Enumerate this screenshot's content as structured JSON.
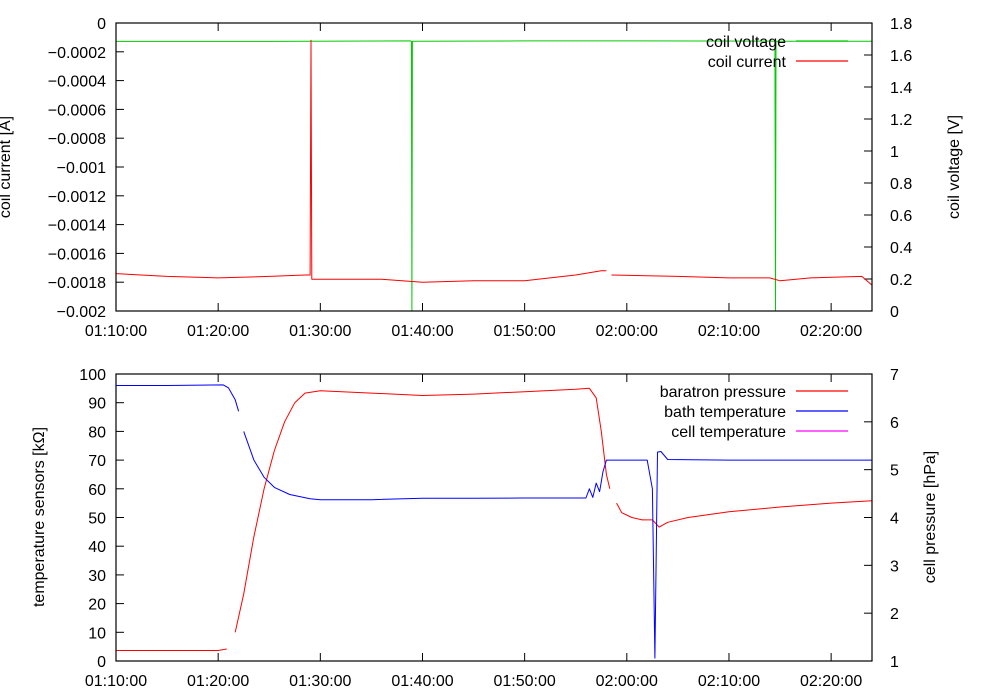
{
  "chart_data": [
    {
      "type": "line",
      "y1label": "coil current [A]",
      "y2label": "coil voltage [V]",
      "xlim": [
        "01:10:00",
        "02:24:00"
      ],
      "xticks": [
        "01:10:00",
        "01:20:00",
        "01:30:00",
        "01:40:00",
        "01:50:00",
        "02:00:00",
        "02:10:00",
        "02:20:00"
      ],
      "y1lim": [
        -0.002,
        0
      ],
      "y1ticks": [
        "0",
        "−0.0002",
        "−0.0004",
        "−0.0006",
        "−0.0008",
        "−0.001",
        "−0.0012",
        "−0.0014",
        "−0.0016",
        "−0.0018",
        "−0.002"
      ],
      "y2lim": [
        0,
        1.8
      ],
      "y2ticks": [
        "1.8",
        "1.6",
        "1.4",
        "1.2",
        "1",
        "0.8",
        "0.6",
        "0.4",
        "0.2",
        "0"
      ],
      "grid": false,
      "legend_position": "top-right",
      "series": [
        {
          "name": "coil voltage",
          "axis": "y2",
          "color": "#00cc00",
          "points": [
            [
              "01:10:00",
              1.685
            ],
            [
              "01:25:00",
              1.685
            ],
            [
              "01:38:50",
              1.688
            ],
            [
              "01:38:55",
              1.685
            ],
            [
              "01:38:58",
              0.0
            ],
            [
              "01:39:01",
              1.685
            ],
            [
              "01:39:04",
              1.686
            ],
            [
              "01:50:00",
              1.688
            ],
            [
              "02:00:00",
              1.688
            ],
            [
              "02:14:25",
              1.687
            ],
            [
              "02:14:30",
              1.68
            ],
            [
              "02:14:33",
              0.0
            ],
            [
              "02:14:36",
              1.684
            ],
            [
              "02:14:40",
              1.686
            ],
            [
              "02:24:00",
              1.686
            ]
          ]
        },
        {
          "name": "coil current",
          "axis": "y1",
          "color": "#ff0000",
          "points": [
            [
              "01:10:00",
              -0.00174
            ],
            [
              "01:15:00",
              -0.00176
            ],
            [
              "01:20:00",
              -0.00177
            ],
            [
              "01:25:00",
              -0.00176
            ],
            [
              "01:28:30",
              -0.00175
            ],
            [
              "01:29:00",
              -0.00175
            ],
            [
              "01:29:05",
              -0.00012
            ],
            [
              "01:29:10",
              -0.00178
            ],
            [
              "01:32:00",
              -0.00178
            ],
            [
              "01:36:00",
              -0.00178
            ],
            [
              "01:40:00",
              -0.0018
            ],
            [
              "01:45:00",
              -0.00179
            ],
            [
              "01:50:00",
              -0.00179
            ],
            [
              "01:55:00",
              -0.00175
            ],
            [
              "01:57:30",
              -0.00172
            ],
            [
              "01:58:00",
              -0.00172
            ],
            null,
            [
              "01:58:30",
              -0.00175
            ],
            [
              "02:05:00",
              -0.00176
            ],
            [
              "02:10:00",
              -0.00177
            ],
            [
              "02:14:00",
              -0.00177
            ],
            [
              "02:15:00",
              -0.00179
            ],
            [
              "02:18:00",
              -0.00177
            ],
            [
              "02:23:00",
              -0.00176
            ],
            [
              "02:24:00",
              -0.00182
            ]
          ]
        }
      ]
    },
    {
      "type": "line",
      "y1label": "temperature sensors [kΩ]",
      "y2label": "cell pressure [hPa]",
      "xlim": [
        "01:10:00",
        "02:24:00"
      ],
      "xticks": [
        "01:10:00",
        "01:20:00",
        "01:30:00",
        "01:40:00",
        "01:50:00",
        "02:00:00",
        "02:10:00",
        "02:20:00"
      ],
      "y1lim": [
        0,
        100
      ],
      "y1ticks": [
        "100",
        "90",
        "80",
        "70",
        "60",
        "50",
        "40",
        "30",
        "20",
        "10",
        "0"
      ],
      "y2lim": [
        1,
        7
      ],
      "y2ticks": [
        "7",
        "6",
        "5",
        "4",
        "3",
        "2",
        "1"
      ],
      "grid": false,
      "legend_position": "top-right",
      "series": [
        {
          "name": "baratron pressure",
          "axis": "y2",
          "color": "#ff0000",
          "points": [
            [
              "01:10:00",
              1.22
            ],
            [
              "01:15:00",
              1.22
            ],
            [
              "01:20:00",
              1.22
            ],
            [
              "01:20:50",
              1.25
            ],
            null,
            [
              "01:21:40",
              1.6
            ],
            [
              "01:22:30",
              2.4
            ],
            [
              "01:23:30",
              3.6
            ],
            [
              "01:24:30",
              4.6
            ],
            [
              "01:25:30",
              5.4
            ],
            [
              "01:26:30",
              6.0
            ],
            [
              "01:27:30",
              6.4
            ],
            [
              "01:28:30",
              6.6
            ],
            [
              "01:30:00",
              6.65
            ],
            [
              "01:35:00",
              6.6
            ],
            [
              "01:40:00",
              6.55
            ],
            [
              "01:45:00",
              6.58
            ],
            [
              "01:50:00",
              6.63
            ],
            [
              "01:55:00",
              6.68
            ],
            [
              "01:56:20",
              6.7
            ],
            [
              "01:57:00",
              6.5
            ],
            [
              "01:57:30",
              5.8
            ],
            [
              "01:58:00",
              4.9
            ],
            [
              "01:58:20",
              4.6
            ],
            null,
            [
              "01:59:00",
              4.3
            ],
            [
              "01:59:30",
              4.1
            ],
            [
              "02:00:30",
              4.0
            ],
            [
              "02:01:30",
              3.95
            ],
            [
              "02:02:30",
              3.95
            ],
            [
              "02:03:10",
              3.8
            ],
            [
              "02:04:00",
              3.9
            ],
            [
              "02:06:00",
              4.0
            ],
            [
              "02:10:00",
              4.12
            ],
            [
              "02:15:00",
              4.22
            ],
            [
              "02:20:00",
              4.3
            ],
            [
              "02:24:00",
              4.35
            ]
          ]
        },
        {
          "name": "bath temperature",
          "axis": "y1",
          "color": "#0000ff",
          "points": [
            [
              "01:10:00",
              96
            ],
            [
              "01:15:00",
              96
            ],
            [
              "01:20:30",
              96.2
            ],
            [
              "01:21:00",
              95.2
            ],
            [
              "01:21:40",
              91
            ],
            [
              "01:22:00",
              87
            ],
            null,
            [
              "01:22:30",
              80
            ],
            [
              "01:23:30",
              70
            ],
            [
              "01:24:30",
              64
            ],
            [
              "01:25:30",
              60.5
            ],
            [
              "01:27:00",
              58
            ],
            [
              "01:29:00",
              56.5
            ],
            [
              "01:30:00",
              56.2
            ],
            [
              "01:35:00",
              56.2
            ],
            [
              "01:40:00",
              56.7
            ],
            [
              "01:45:00",
              56.7
            ],
            [
              "01:50:00",
              56.8
            ],
            [
              "01:56:00",
              56.8
            ],
            [
              "01:56:20",
              60
            ],
            [
              "01:56:40",
              57
            ],
            [
              "01:57:00",
              62
            ],
            [
              "01:57:20",
              59
            ],
            [
              "01:57:40",
              66
            ],
            [
              "01:58:00",
              70
            ],
            [
              "01:58:30",
              70
            ],
            [
              "02:02:00",
              70
            ],
            [
              "02:02:30",
              60
            ],
            [
              "02:02:45",
              1
            ],
            [
              "02:03:00",
              72.8
            ],
            [
              "02:03:20",
              73
            ],
            [
              "02:04:00",
              70.2
            ],
            [
              "02:10:00",
              70
            ],
            [
              "02:20:00",
              70
            ],
            [
              "02:24:00",
              70
            ]
          ]
        },
        {
          "name": "cell temperature",
          "axis": "y1",
          "color": "#ff00ff",
          "points": []
        }
      ]
    }
  ]
}
